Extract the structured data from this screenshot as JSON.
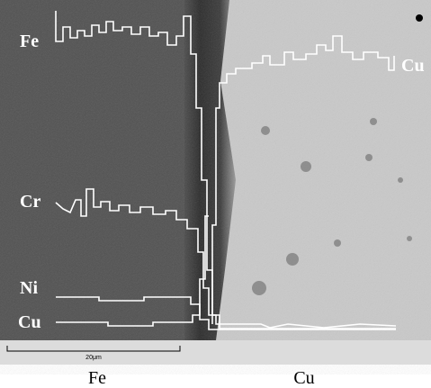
{
  "labels": {
    "fe": "Fe",
    "cr": "Cr",
    "ni": "Ni",
    "cu_left": "Cu",
    "cu_right": "Cu"
  },
  "scale_bar": "20μm",
  "captions": [
    "Fe",
    "Cu"
  ]
}
